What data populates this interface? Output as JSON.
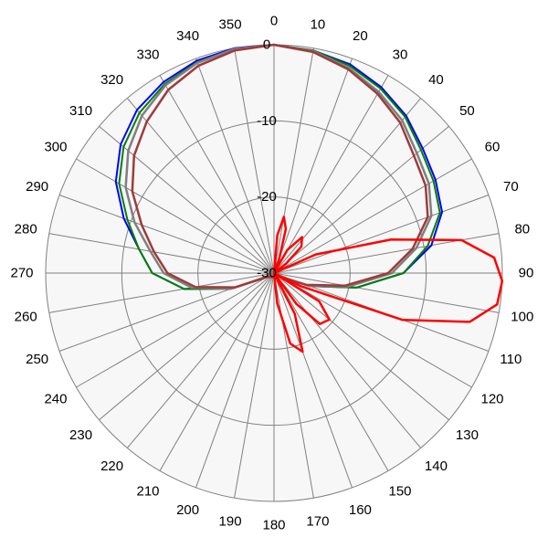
{
  "chart_data": {
    "type": "polar-line",
    "radial_axis": {
      "range": [
        -30,
        0
      ],
      "rings": [
        -30,
        -20,
        -10,
        0
      ],
      "ring_labels": [
        "-30",
        "-20",
        "-10",
        "0"
      ]
    },
    "angular_axis": {
      "step_deg": 10,
      "labels": [
        "0",
        "10",
        "20",
        "30",
        "40",
        "50",
        "60",
        "70",
        "80",
        "90",
        "100",
        "110",
        "120",
        "130",
        "140",
        "150",
        "160",
        "170",
        "180",
        "190",
        "200",
        "210",
        "220",
        "230",
        "240",
        "250",
        "260",
        "270",
        "280",
        "290",
        "300",
        "310",
        "320",
        "330",
        "340",
        "350"
      ]
    },
    "grid": true,
    "colors": {
      "plot_bg": "#f7f7f7",
      "grid": "#808080",
      "grid_minor": "#c8c8c8"
    },
    "series": [
      {
        "color": "#0000ff",
        "width": 2,
        "points": [
          [
            0,
            0
          ],
          [
            10,
            -0.3
          ],
          [
            20,
            -0.8
          ],
          [
            30,
            -1.8
          ],
          [
            40,
            -3
          ],
          [
            50,
            -4.5
          ],
          [
            60,
            -5.5
          ],
          [
            70,
            -6.5
          ],
          [
            80,
            -9
          ],
          [
            90,
            -13
          ],
          [
            100,
            -19
          ],
          [
            110,
            -25
          ],
          [
            120,
            -29
          ],
          [
            240,
            -29
          ],
          [
            250,
            -24
          ],
          [
            260,
            -18
          ],
          [
            270,
            -14
          ],
          [
            280,
            -12
          ],
          [
            290,
            -9
          ],
          [
            300,
            -6
          ],
          [
            310,
            -3.7
          ],
          [
            320,
            -2
          ],
          [
            330,
            -1
          ],
          [
            340,
            -0.3
          ],
          [
            350,
            0
          ]
        ]
      },
      {
        "color": "#008000",
        "width": 2,
        "points": [
          [
            0,
            0
          ],
          [
            10,
            -0.3
          ],
          [
            20,
            -1
          ],
          [
            30,
            -2
          ],
          [
            40,
            -3.2
          ],
          [
            50,
            -4.8
          ],
          [
            60,
            -5.8
          ],
          [
            70,
            -6.8
          ],
          [
            80,
            -9.5
          ],
          [
            90,
            -13
          ],
          [
            100,
            -19
          ],
          [
            110,
            -25
          ],
          [
            120,
            -29
          ],
          [
            240,
            -29
          ],
          [
            250,
            -24
          ],
          [
            260,
            -18
          ],
          [
            270,
            -14
          ],
          [
            280,
            -12
          ],
          [
            290,
            -9.5
          ],
          [
            300,
            -6.5
          ],
          [
            310,
            -4.2
          ],
          [
            320,
            -2.5
          ],
          [
            330,
            -1.3
          ],
          [
            340,
            -0.5
          ],
          [
            350,
            -0.1
          ]
        ]
      },
      {
        "color": "#808080",
        "width": 2.5,
        "points": [
          [
            0,
            0
          ],
          [
            10,
            -0.4
          ],
          [
            20,
            -1.3
          ],
          [
            30,
            -2.5
          ],
          [
            40,
            -3.8
          ],
          [
            50,
            -5.5
          ],
          [
            60,
            -6.5
          ],
          [
            70,
            -8
          ],
          [
            80,
            -11
          ],
          [
            90,
            -14.5
          ],
          [
            100,
            -20
          ],
          [
            110,
            -25
          ],
          [
            120,
            -29
          ],
          [
            240,
            -29
          ],
          [
            250,
            -24
          ],
          [
            260,
            -19
          ],
          [
            270,
            -15.5
          ],
          [
            280,
            -13.5
          ],
          [
            290,
            -10.5
          ],
          [
            300,
            -7.5
          ],
          [
            310,
            -5
          ],
          [
            320,
            -3
          ],
          [
            330,
            -1.5
          ],
          [
            340,
            -0.6
          ],
          [
            350,
            -0.1
          ]
        ]
      },
      {
        "color": "#a03a3a",
        "width": 2.5,
        "points": [
          [
            0,
            0
          ],
          [
            10,
            -0.5
          ],
          [
            20,
            -1.5
          ],
          [
            30,
            -2.8
          ],
          [
            40,
            -4.2
          ],
          [
            50,
            -6
          ],
          [
            60,
            -7
          ],
          [
            70,
            -8.5
          ],
          [
            80,
            -11.5
          ],
          [
            90,
            -15
          ],
          [
            100,
            -20.5
          ],
          [
            110,
            -25.5
          ],
          [
            120,
            -29
          ],
          [
            240,
            -29
          ],
          [
            250,
            -24.5
          ],
          [
            260,
            -19.5
          ],
          [
            270,
            -16
          ],
          [
            280,
            -14
          ],
          [
            290,
            -11.5
          ],
          [
            300,
            -8.5
          ],
          [
            310,
            -6
          ],
          [
            320,
            -4
          ],
          [
            330,
            -2.2
          ],
          [
            340,
            -1
          ],
          [
            350,
            -0.3
          ]
        ]
      },
      {
        "color": "#ff0000",
        "width": 2.5,
        "points": [
          [
            0,
            -30
          ],
          [
            5,
            -25
          ],
          [
            10,
            -22.5
          ],
          [
            15,
            -24
          ],
          [
            20,
            -28
          ],
          [
            25,
            -30
          ],
          [
            30,
            -26.5
          ],
          [
            38,
            -24
          ],
          [
            46,
            -25
          ],
          [
            52,
            -28
          ],
          [
            57,
            -30
          ],
          [
            66,
            -24
          ],
          [
            74,
            -14
          ],
          [
            80,
            -5
          ],
          [
            86,
            -1
          ],
          [
            92,
            0
          ],
          [
            98,
            -0.4
          ],
          [
            104,
            -3.5
          ],
          [
            110,
            -12
          ],
          [
            116,
            -26
          ],
          [
            120,
            -30
          ],
          [
            122,
            -23
          ],
          [
            130,
            -20.5
          ],
          [
            138,
            -21
          ],
          [
            144,
            -25
          ],
          [
            150,
            -30
          ],
          [
            153,
            -24
          ],
          [
            160,
            -19
          ],
          [
            167,
            -20.5
          ],
          [
            174,
            -26
          ],
          [
            180,
            -30
          ]
        ]
      }
    ]
  }
}
